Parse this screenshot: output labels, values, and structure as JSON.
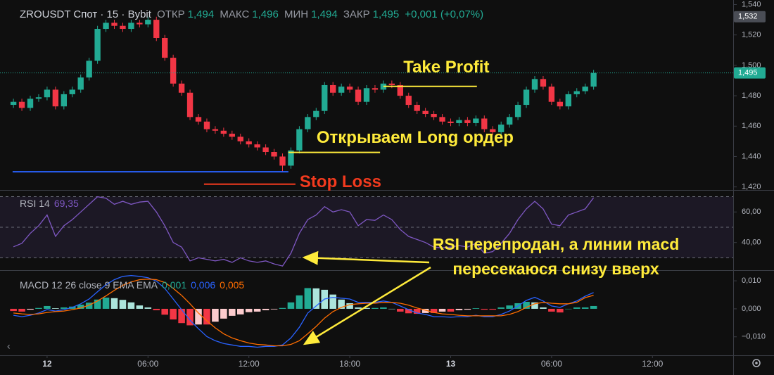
{
  "chart_data": [
    {
      "type": "candlestick",
      "title": "ZROUSDT Спот · 15 · Bybit",
      "ohlc_legend": [
        {
          "label": "ОТКР",
          "value": "1,494"
        },
        {
          "label": "МАКС",
          "value": "1,496"
        },
        {
          "label": "МИН",
          "value": "1,494"
        },
        {
          "label": "ЗАКР",
          "value": "1,495"
        }
      ],
      "change": "+0,001 (+0,07%)",
      "x": [
        -2,
        -1.5,
        -1,
        -0.5,
        0,
        0.5,
        1,
        1.5,
        2,
        2.5,
        3,
        3.5,
        4,
        4.5,
        5,
        5.5,
        6,
        6.5,
        7,
        7.5,
        8,
        8.5,
        9,
        9.5,
        10,
        10.5,
        11,
        11.5,
        12,
        12.5,
        13,
        13.5,
        14,
        14.5,
        15,
        15.5,
        16,
        16.5,
        17,
        17.5,
        18,
        18.5,
        19,
        19.5,
        20,
        20.5,
        21,
        21.5,
        22,
        22.5,
        23,
        23.5,
        24,
        24.5,
        25,
        25.5,
        26,
        26.5,
        27,
        27.5,
        28,
        28.5,
        29,
        29.5,
        30,
        30.5,
        31,
        31.5,
        32,
        32.5
      ],
      "open": [
        1.474,
        1.476,
        1.472,
        1.478,
        1.479,
        1.484,
        1.473,
        1.481,
        1.484,
        1.492,
        1.503,
        1.524,
        1.528,
        1.526,
        1.524,
        1.528,
        1.527,
        1.53,
        1.518,
        1.505,
        1.488,
        1.482,
        1.466,
        1.463,
        1.458,
        1.457,
        1.455,
        1.453,
        1.45,
        1.448,
        1.446,
        1.443,
        1.44,
        1.434,
        1.444,
        1.458,
        1.466,
        1.47,
        1.487,
        1.482,
        1.486,
        1.484,
        1.476,
        1.485,
        1.484,
        1.488,
        1.487,
        1.48,
        1.474,
        1.47,
        1.468,
        1.466,
        1.463,
        1.462,
        1.464,
        1.462,
        1.465,
        1.458,
        1.456,
        1.461,
        1.466,
        1.474,
        1.484,
        1.491,
        1.486,
        1.476,
        1.473,
        1.481,
        1.483,
        1.486
      ],
      "high": [
        1.478,
        1.478,
        1.48,
        1.481,
        1.486,
        1.486,
        1.483,
        1.486,
        1.494,
        1.505,
        1.526,
        1.53,
        1.53,
        1.528,
        1.53,
        1.53,
        1.532,
        1.532,
        1.52,
        1.507,
        1.49,
        1.484,
        1.468,
        1.465,
        1.46,
        1.459,
        1.457,
        1.455,
        1.452,
        1.45,
        1.448,
        1.445,
        1.442,
        1.446,
        1.46,
        1.468,
        1.472,
        1.489,
        1.489,
        1.488,
        1.488,
        1.486,
        1.487,
        1.487,
        1.49,
        1.49,
        1.489,
        1.482,
        1.476,
        1.472,
        1.47,
        1.468,
        1.465,
        1.466,
        1.466,
        1.467,
        1.467,
        1.46,
        1.463,
        1.468,
        1.476,
        1.486,
        1.493,
        1.493,
        1.488,
        1.478,
        1.483,
        1.485,
        1.488,
        1.497
      ],
      "low": [
        1.472,
        1.47,
        1.47,
        1.476,
        1.477,
        1.471,
        1.471,
        1.479,
        1.482,
        1.49,
        1.501,
        1.522,
        1.524,
        1.522,
        1.522,
        1.525,
        1.525,
        1.516,
        1.503,
        1.486,
        1.48,
        1.464,
        1.461,
        1.456,
        1.455,
        1.453,
        1.451,
        1.448,
        1.446,
        1.444,
        1.441,
        1.438,
        1.43,
        1.432,
        1.442,
        1.456,
        1.464,
        1.468,
        1.48,
        1.48,
        1.482,
        1.474,
        1.474,
        1.482,
        1.482,
        1.485,
        1.478,
        1.472,
        1.468,
        1.466,
        1.464,
        1.461,
        1.46,
        1.46,
        1.46,
        1.46,
        1.456,
        1.454,
        1.454,
        1.459,
        1.464,
        1.472,
        1.482,
        1.484,
        1.474,
        1.471,
        1.471,
        1.479,
        1.481,
        1.484
      ],
      "close": [
        1.476,
        1.472,
        1.478,
        1.479,
        1.484,
        1.473,
        1.481,
        1.484,
        1.492,
        1.503,
        1.524,
        1.528,
        1.526,
        1.524,
        1.528,
        1.527,
        1.53,
        1.518,
        1.505,
        1.488,
        1.482,
        1.466,
        1.463,
        1.458,
        1.457,
        1.455,
        1.453,
        1.45,
        1.448,
        1.446,
        1.443,
        1.44,
        1.434,
        1.444,
        1.458,
        1.466,
        1.47,
        1.487,
        1.482,
        1.486,
        1.484,
        1.476,
        1.485,
        1.484,
        1.488,
        1.487,
        1.48,
        1.474,
        1.47,
        1.468,
        1.466,
        1.463,
        1.462,
        1.464,
        1.462,
        1.465,
        1.458,
        1.456,
        1.461,
        1.466,
        1.474,
        1.484,
        1.491,
        1.486,
        1.476,
        1.473,
        1.481,
        1.483,
        1.486,
        1.495
      ],
      "up_color": "#22ab94",
      "down_color": "#f23645",
      "xlim": [
        -2.8,
        40.8
      ],
      "xticks": [
        {
          "value": 0,
          "label": "12"
        },
        {
          "value": 6,
          "label": "06:00"
        },
        {
          "value": 12,
          "label": "12:00"
        },
        {
          "value": 18,
          "label": "18:00"
        },
        {
          "value": 24,
          "label": "13"
        },
        {
          "value": 30,
          "label": "06:00"
        },
        {
          "value": 36,
          "label": "12:00"
        }
      ],
      "ylim": [
        1.418,
        1.543
      ],
      "yticks": [
        {
          "value": 1.42,
          "label": "1,420"
        },
        {
          "value": 1.44,
          "label": "1,440"
        },
        {
          "value": 1.46,
          "label": "1,460"
        },
        {
          "value": 1.48,
          "label": "1,480"
        },
        {
          "value": 1.5,
          "label": "1,500"
        },
        {
          "value": 1.52,
          "label": "1,520"
        },
        {
          "value": 1.54,
          "label": "1,540"
        }
      ],
      "last_price": {
        "value": 1.495,
        "label": "1,495"
      },
      "high_marker": {
        "value": 1.532,
        "label": "1,532"
      },
      "grid": false,
      "annotations": [
        {
          "y": 1.43,
          "x": [
            -2.05,
            14.35
          ],
          "color": "#2962ff"
        },
        {
          "label": "Stop Loss",
          "y": 1.4218,
          "x": [
            9.33,
            14.77
          ],
          "color": "#f23a1e"
        },
        {
          "label": "Открываем Long ордер",
          "y": 1.4427,
          "x": [
            14.35,
            19.8
          ],
          "color": "#ffeb3b"
        },
        {
          "label": "Take Profit",
          "y": 1.4862,
          "x": [
            20,
            25.56
          ],
          "color": "#ffeb3b"
        }
      ]
    },
    {
      "type": "line",
      "title": "RSI 14",
      "last_value_label": "69,35",
      "color": "#7e57c2",
      "values": [
        37.2,
        39.5,
        46,
        51,
        58,
        44,
        51,
        55,
        60,
        65,
        70,
        69,
        65,
        67,
        65,
        66.5,
        67,
        60,
        51,
        40,
        37,
        28,
        30,
        29,
        28,
        29,
        27,
        30,
        28,
        27,
        28,
        26,
        24.6,
        33,
        46,
        55,
        58,
        63.5,
        60,
        61.5,
        60,
        51,
        55,
        54.5,
        58,
        55,
        48.5,
        44,
        42,
        40,
        37,
        36.5,
        37,
        38,
        37,
        39.5,
        33,
        34,
        39.5,
        46,
        55,
        62,
        67,
        62,
        52,
        51,
        58,
        60,
        62,
        69.35
      ],
      "ylim": [
        21.9,
        74.4
      ],
      "yticks": [
        {
          "value": 60,
          "label": "60,00"
        },
        {
          "value": 40,
          "label": "40,00"
        }
      ],
      "levels": [
        70,
        50,
        30
      ],
      "band_color": "#7e57c2",
      "annotations": [
        {
          "label": "RSI перепродан,  а линии macd"
        },
        {
          "label": "пересекаюся снизу вверх"
        }
      ]
    },
    {
      "type": "macd",
      "title": "MACD 12 26 close 9 EMA EMA",
      "series": [
        {
          "kind": "histogram",
          "value_label": "0,001",
          "color": "#22ab94",
          "colors": [
            "#22ab94",
            "#ace5dc",
            "#fccbcd",
            "#f23645"
          ],
          "values": [
            -0.0008,
            -0.001,
            -0.0003,
            0.0003,
            0.001,
            0.0002,
            0.0005,
            0.0008,
            0.0015,
            0.0022,
            0.0033,
            0.004,
            0.0038,
            0.0032,
            0.0023,
            0.0012,
            0.0005,
            -0.0005,
            -0.0021,
            -0.0038,
            -0.0051,
            -0.0059,
            -0.0056,
            -0.0056,
            -0.0046,
            -0.0035,
            -0.0025,
            -0.002,
            -0.0012,
            -0.001,
            -0.0005,
            -0.0002,
            0.0003,
            0.0023,
            0.0048,
            0.0074,
            0.0073,
            0.0068,
            0.0051,
            0.0033,
            0.002,
            0.0005,
            0.0003,
            0.0003,
            0.0005,
            0,
            -0.001,
            -0.0016,
            -0.0018,
            -0.0015,
            -0.0015,
            -0.001,
            -0.001,
            -0.0005,
            -0.0003,
            0.0002,
            -0.0003,
            -0.0003,
            0.0005,
            0.0012,
            0.002,
            0.0025,
            0.0023,
            0.0005,
            -0.001,
            -0.0013,
            0,
            0.0005,
            0.0005,
            0.001
          ]
        },
        {
          "kind": "line",
          "value_label": "0,006",
          "color": "#2962ff",
          "values": [
            -0.0023,
            -0.0028,
            -0.0023,
            -0.0015,
            -0.0003,
            -0.0008,
            -0.0003,
            0.0005,
            0.0018,
            0.0035,
            0.0061,
            0.0086,
            0.0104,
            0.0116,
            0.0119,
            0.0116,
            0.0111,
            0.0099,
            0.0073,
            0.0035,
            -0.0003,
            -0.0041,
            -0.0071,
            -0.0099,
            -0.0114,
            -0.0124,
            -0.0129,
            -0.0134,
            -0.0134,
            -0.0137,
            -0.0134,
            -0.0134,
            -0.0129,
            -0.0104,
            -0.0066,
            -0.0015,
            0.001,
            0.0035,
            0.0041,
            0.0038,
            0.0035,
            0.0023,
            0.0023,
            0.0023,
            0.0028,
            0.0023,
            0.001,
            -0.0003,
            -0.0015,
            -0.002,
            -0.0028,
            -0.0028,
            -0.003,
            -0.0028,
            -0.0028,
            -0.0023,
            -0.0028,
            -0.0028,
            -0.002,
            -0.0008,
            0.001,
            0.003,
            0.0041,
            0.0028,
            0.001,
            0.0005,
            0.0018,
            0.0028,
            0.0045,
            0.0058
          ]
        },
        {
          "kind": "line",
          "value_label": "0,005",
          "color": "#ff6d00",
          "values": [
            -0.0015,
            -0.0018,
            -0.002,
            -0.0018,
            -0.0013,
            -0.001,
            -0.0008,
            -0.0003,
            0.0003,
            0.0013,
            0.0028,
            0.0046,
            0.0066,
            0.0084,
            0.0096,
            0.0104,
            0.0106,
            0.0104,
            0.0094,
            0.0073,
            0.0048,
            0.0018,
            -0.0015,
            -0.0043,
            -0.0068,
            -0.0089,
            -0.0104,
            -0.0114,
            -0.0122,
            -0.0127,
            -0.0129,
            -0.0132,
            -0.0132,
            -0.0127,
            -0.0114,
            -0.0089,
            -0.0063,
            -0.0033,
            -0.001,
            0.0005,
            0.0015,
            0.0018,
            0.002,
            0.002,
            0.0023,
            0.0023,
            0.002,
            0.0013,
            0.0003,
            -0.0005,
            -0.0013,
            -0.0018,
            -0.002,
            -0.0023,
            -0.0025,
            -0.0025,
            -0.0025,
            -0.0025,
            -0.0025,
            -0.002,
            -0.001,
            0.0005,
            0.0018,
            0.0023,
            0.002,
            0.0018,
            0.0018,
            0.0023,
            0.004,
            0.0048
          ]
        }
      ],
      "ylim": [
        -0.0166,
        0.0138
      ],
      "yticks": [
        {
          "value": 0.01,
          "label": "0,010"
        },
        {
          "value": 0,
          "label": "0,000"
        },
        {
          "value": -0.01,
          "label": "−0,010"
        }
      ]
    }
  ]
}
